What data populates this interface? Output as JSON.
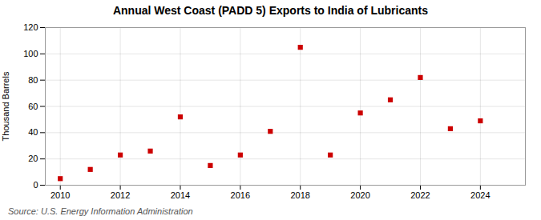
{
  "chart_data": {
    "type": "scatter",
    "title": "Annual West Coast (PADD 5) Exports to India of Lubricants",
    "ylabel": "Thousand Barrels",
    "source": "Source: U.S. Energy Information Administration",
    "x": [
      2010,
      2011,
      2012,
      2013,
      2014,
      2015,
      2016,
      2017,
      2018,
      2019,
      2020,
      2021,
      2022,
      2023,
      2024
    ],
    "values": [
      5,
      12,
      23,
      26,
      52,
      15,
      23,
      41,
      105,
      23,
      55,
      65,
      82,
      43,
      49
    ],
    "color": "#cc0000",
    "marker": "square",
    "xlim": [
      2009.5,
      2025.5
    ],
    "xticks": [
      2010,
      2012,
      2014,
      2016,
      2018,
      2020,
      2022,
      2024
    ],
    "ylim": [
      0,
      120
    ],
    "yticks": [
      0,
      20,
      40,
      60,
      80,
      100,
      120
    ],
    "grid": true
  }
}
